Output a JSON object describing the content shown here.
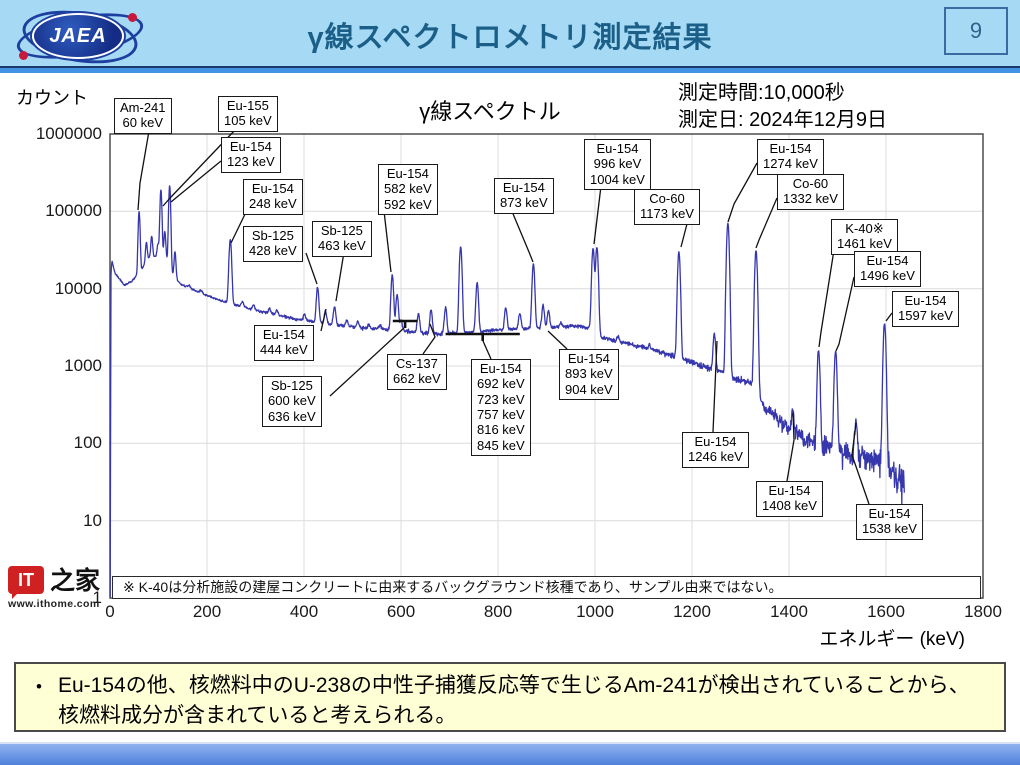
{
  "header": {
    "logo_text": "JAEA",
    "title": "γ線スペクトロメトリ測定結果",
    "page_number": "9"
  },
  "measurement": {
    "time": "測定時間:10,000秒",
    "date": "測定日: 2024年12月9日"
  },
  "watermark": {
    "logo_text": "IT",
    "logo_suffix": "之家",
    "url": "www.ithome.com"
  },
  "note": {
    "bullet": "•",
    "text": "Eu-154の他、核燃料中のU-238の中性子捕獲反応等で生じるAm-241が検出されていることから、核燃料成分が含まれていると考えられる。"
  },
  "chart_data": {
    "type": "line",
    "title": "γ線スペクトル",
    "xlabel": "エネルギー (keV)",
    "ylabel": "カウント",
    "footnote": "※ K-40は分析施設の建屋コンクリートに由来するバックグラウンド核種であり、サンプル由来ではない。",
    "xlim": [
      0,
      1800
    ],
    "x_ticks": [
      0,
      200,
      400,
      600,
      800,
      1000,
      1200,
      1400,
      1600,
      1800
    ],
    "y_scale": "log",
    "ylim": [
      1,
      1000000
    ],
    "y_ticks": [
      "1000000",
      "100000",
      "10000",
      "1000",
      "100",
      "10",
      "1"
    ],
    "grid": true,
    "line_color": "#3636ad",
    "continuum": [
      [
        0.5,
        3
      ],
      [
        2,
        15000
      ],
      [
        4,
        23000
      ],
      [
        10,
        16000
      ],
      [
        30,
        11000
      ],
      [
        45,
        12500
      ],
      [
        60,
        16000
      ],
      [
        80,
        25000
      ],
      [
        105,
        27000
      ],
      [
        122,
        23000
      ],
      [
        130,
        15000
      ],
      [
        145,
        11500
      ],
      [
        180,
        9200
      ],
      [
        220,
        7300
      ],
      [
        260,
        6100
      ],
      [
        320,
        4900
      ],
      [
        380,
        4100
      ],
      [
        440,
        3550
      ],
      [
        520,
        3100
      ],
      [
        600,
        2850
      ],
      [
        680,
        2600
      ],
      [
        760,
        2800
      ],
      [
        830,
        3000
      ],
      [
        900,
        3100
      ],
      [
        960,
        3300
      ],
      [
        1002,
        3000
      ],
      [
        1012,
        2350
      ],
      [
        1060,
        2000
      ],
      [
        1120,
        1600
      ],
      [
        1180,
        1250
      ],
      [
        1230,
        950
      ],
      [
        1268,
        820
      ],
      [
        1288,
        680
      ],
      [
        1328,
        580
      ],
      [
        1348,
        300
      ],
      [
        1385,
        185
      ],
      [
        1430,
        115
      ],
      [
        1480,
        88
      ],
      [
        1530,
        72
      ],
      [
        1572,
        62
      ],
      [
        1592,
        58
      ],
      [
        1608,
        45
      ],
      [
        1638,
        34
      ]
    ],
    "peaks": [
      {
        "nuclide": "Am-241",
        "energy_keV": 60,
        "counts": 100000
      },
      {
        "nuclide": "",
        "energy_keV": 75,
        "counts": 40000
      },
      {
        "nuclide": "",
        "energy_keV": 86,
        "counts": 48000
      },
      {
        "nuclide": "",
        "energy_keV": 99,
        "counts": 38000
      },
      {
        "nuclide": "Eu-155",
        "energy_keV": 105,
        "counts": 190000
      },
      {
        "nuclide": "",
        "energy_keV": 113,
        "counts": 55000
      },
      {
        "nuclide": "Eu-154",
        "energy_keV": 123,
        "counts": 215000
      },
      {
        "nuclide": "",
        "energy_keV": 134,
        "counts": 30000
      },
      {
        "nuclide": "",
        "energy_keV": 163,
        "counts": 11000
      },
      {
        "nuclide": "",
        "energy_keV": 188,
        "counts": 9500
      },
      {
        "nuclide": "Eu-154",
        "energy_keV": 248,
        "counts": 43000
      },
      {
        "nuclide": "",
        "energy_keV": 273,
        "counts": 6800
      },
      {
        "nuclide": "",
        "energy_keV": 296,
        "counts": 6200
      },
      {
        "nuclide": "",
        "energy_keV": 329,
        "counts": 5500
      },
      {
        "nuclide": "",
        "energy_keV": 344,
        "counts": 5300
      },
      {
        "nuclide": "",
        "energy_keV": 401,
        "counts": 4600
      },
      {
        "nuclide": "Sb-125",
        "energy_keV": 428,
        "counts": 10500
      },
      {
        "nuclide": "Eu-154",
        "energy_keV": 444,
        "counts": 5200
      },
      {
        "nuclide": "Sb-125",
        "energy_keV": 463,
        "counts": 5800
      },
      {
        "nuclide": "",
        "energy_keV": 488,
        "counts": 3900
      },
      {
        "nuclide": "",
        "energy_keV": 511,
        "counts": 3700
      },
      {
        "nuclide": "",
        "energy_keV": 534,
        "counts": 3500
      },
      {
        "nuclide": "",
        "energy_keV": 557,
        "counts": 3400
      },
      {
        "nuclide": "Eu-154",
        "energy_keV": 582,
        "counts": 15000
      },
      {
        "nuclide": "Eu-154",
        "energy_keV": 592,
        "counts": 8500
      },
      {
        "nuclide": "Sb-125",
        "energy_keV": 600,
        "counts": 3900
      },
      {
        "nuclide": "Sb-125",
        "energy_keV": 636,
        "counts": 4700
      },
      {
        "nuclide": "Cs-137",
        "energy_keV": 662,
        "counts": 5300
      },
      {
        "nuclide": "Eu-154",
        "energy_keV": 692,
        "counts": 5800
      },
      {
        "nuclide": "Eu-154",
        "energy_keV": 723,
        "counts": 35000
      },
      {
        "nuclide": "Eu-154",
        "energy_keV": 757,
        "counts": 12000
      },
      {
        "nuclide": "Eu-154",
        "energy_keV": 816,
        "counts": 5600
      },
      {
        "nuclide": "Eu-154",
        "energy_keV": 845,
        "counts": 4800
      },
      {
        "nuclide": "Eu-154",
        "energy_keV": 873,
        "counts": 21000
      },
      {
        "nuclide": "Eu-154",
        "energy_keV": 893,
        "counts": 6200
      },
      {
        "nuclide": "Eu-154",
        "energy_keV": 904,
        "counts": 5200
      },
      {
        "nuclide": "",
        "energy_keV": 930,
        "counts": 3700
      },
      {
        "nuclide": "Eu-154",
        "energy_keV": 996,
        "counts": 33000
      },
      {
        "nuclide": "Eu-154",
        "energy_keV": 1004,
        "counts": 34000
      },
      {
        "nuclide": "",
        "energy_keV": 1048,
        "counts": 2400
      },
      {
        "nuclide": "",
        "energy_keV": 1112,
        "counts": 1900
      },
      {
        "nuclide": "Co-60",
        "energy_keV": 1173,
        "counts": 30000
      },
      {
        "nuclide": "Eu-154",
        "energy_keV": 1246,
        "counts": 2600
      },
      {
        "nuclide": "Eu-154",
        "energy_keV": 1274,
        "counts": 70000
      },
      {
        "nuclide": "Co-60",
        "energy_keV": 1332,
        "counts": 31000
      },
      {
        "nuclide": "Eu-154",
        "energy_keV": 1408,
        "counts": 260
      },
      {
        "nuclide": "K-40",
        "energy_keV": 1461,
        "counts": 1600
      },
      {
        "nuclide": "Eu-154",
        "energy_keV": 1496,
        "counts": 1500
      },
      {
        "nuclide": "Eu-154",
        "energy_keV": 1538,
        "counts": 200
      },
      {
        "nuclide": "Eu-154",
        "energy_keV": 1597,
        "counts": 3600
      }
    ],
    "peak_labels": [
      {
        "id": "am241_60",
        "lines": [
          "Am-241",
          "60 keV"
        ]
      },
      {
        "id": "eu155_105",
        "lines": [
          "Eu-155",
          "105 keV"
        ]
      },
      {
        "id": "eu154_123",
        "lines": [
          "Eu-154",
          "123 keV"
        ]
      },
      {
        "id": "eu154_248",
        "lines": [
          "Eu-154",
          "248 keV"
        ]
      },
      {
        "id": "sb125_428",
        "lines": [
          "Sb-125",
          "428 keV"
        ]
      },
      {
        "id": "sb125_463",
        "lines": [
          "Sb-125",
          "463 keV"
        ]
      },
      {
        "id": "eu154_582",
        "lines": [
          "Eu-154",
          "582 keV",
          "592 keV"
        ]
      },
      {
        "id": "eu154_873",
        "lines": [
          "Eu-154",
          "873 keV"
        ]
      },
      {
        "id": "eu154_996",
        "lines": [
          "Eu-154",
          "996 keV",
          "1004 keV"
        ]
      },
      {
        "id": "co60_1173",
        "lines": [
          "Co-60",
          "1173 keV"
        ]
      },
      {
        "id": "eu154_1274",
        "lines": [
          "Eu-154",
          "1274 keV"
        ]
      },
      {
        "id": "co60_1332",
        "lines": [
          "Co-60",
          "1332 keV"
        ]
      },
      {
        "id": "k40_1461",
        "lines": [
          "K-40※",
          "1461 keV"
        ]
      },
      {
        "id": "eu154_1496",
        "lines": [
          "Eu-154",
          "1496 keV"
        ]
      },
      {
        "id": "eu154_1597",
        "lines": [
          "Eu-154",
          "1597 keV"
        ]
      },
      {
        "id": "eu154_444",
        "lines": [
          "Eu-154",
          "444 keV"
        ]
      },
      {
        "id": "sb125_600",
        "lines": [
          "Sb-125",
          "600 keV",
          "636 keV"
        ]
      },
      {
        "id": "cs137_662",
        "lines": [
          "Cs-137",
          "662 keV"
        ]
      },
      {
        "id": "eu154_multi",
        "lines": [
          "Eu-154",
          "692 keV",
          "723 keV",
          "757 keV",
          "816 keV",
          "845 keV"
        ]
      },
      {
        "id": "eu154_893",
        "lines": [
          "Eu-154",
          "893 keV",
          "904 keV"
        ]
      },
      {
        "id": "eu154_1246",
        "lines": [
          "Eu-154",
          "1246 keV"
        ]
      },
      {
        "id": "eu154_1408",
        "lines": [
          "Eu-154",
          "1408 keV"
        ]
      },
      {
        "id": "eu154_1538",
        "lines": [
          "Eu-154",
          "1538 keV"
        ]
      }
    ],
    "brackets": [
      {
        "id": "bracketA",
        "range_keV": [
          583,
          634
        ]
      },
      {
        "id": "bracketB",
        "range_keV": [
          692,
          845
        ]
      }
    ]
  }
}
